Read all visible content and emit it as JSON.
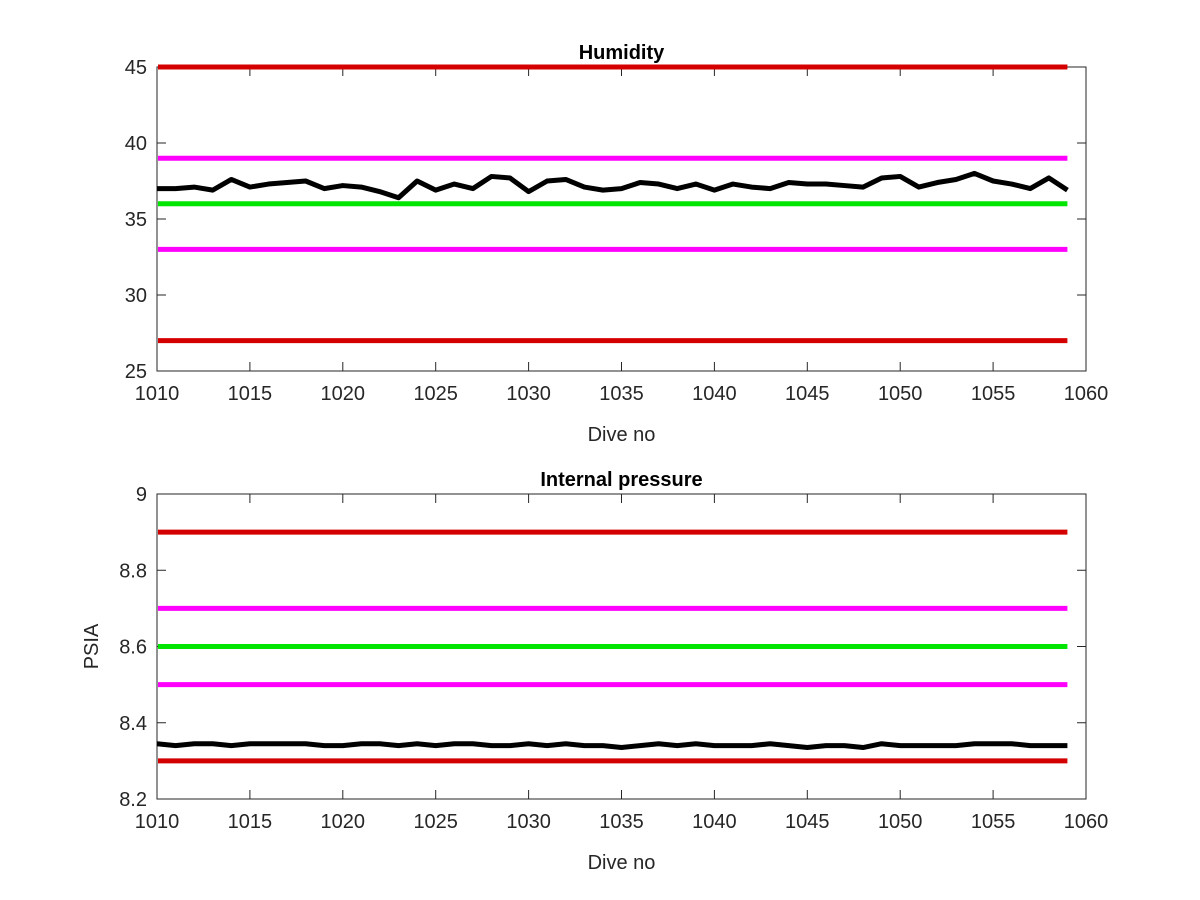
{
  "chart_data": [
    {
      "type": "line",
      "title": "Humidity",
      "xlabel": "Dive no",
      "ylabel": "",
      "xlim": [
        1010,
        1060
      ],
      "ylim": [
        25,
        45
      ],
      "xticks": [
        1010,
        1015,
        1020,
        1025,
        1030,
        1035,
        1040,
        1045,
        1050,
        1055,
        1060
      ],
      "yticks": [
        25,
        30,
        35,
        40,
        45
      ],
      "xtick_labels": [
        "1010",
        "1015",
        "1020",
        "1025",
        "1030",
        "1035",
        "1040",
        "1045",
        "1050",
        "1055",
        "1060"
      ],
      "ytick_labels": [
        "25",
        "30",
        "35",
        "40",
        "45"
      ],
      "grid": false,
      "reference_lines": [
        {
          "y": 45,
          "color": "#d40000"
        },
        {
          "y": 39,
          "color": "#ff00ff"
        },
        {
          "y": 36,
          "color": "#00e600"
        },
        {
          "y": 33,
          "color": "#ff00ff"
        },
        {
          "y": 27,
          "color": "#d40000"
        }
      ],
      "series": [
        {
          "color": "#000000",
          "x": [
            1010,
            1011,
            1012,
            1013,
            1014,
            1015,
            1016,
            1017,
            1018,
            1019,
            1020,
            1021,
            1022,
            1023,
            1024,
            1025,
            1026,
            1027,
            1028,
            1029,
            1030,
            1031,
            1032,
            1033,
            1034,
            1035,
            1036,
            1037,
            1038,
            1039,
            1040,
            1041,
            1042,
            1043,
            1044,
            1045,
            1046,
            1047,
            1048,
            1049,
            1050,
            1051,
            1052,
            1053,
            1054,
            1055,
            1056,
            1057,
            1058,
            1059
          ],
          "y": [
            37.0,
            37.0,
            37.1,
            36.9,
            37.6,
            37.1,
            37.3,
            37.4,
            37.5,
            37.0,
            37.2,
            37.1,
            36.8,
            36.4,
            37.5,
            36.9,
            37.3,
            37.0,
            37.8,
            37.7,
            36.8,
            37.5,
            37.6,
            37.1,
            36.9,
            37.0,
            37.4,
            37.3,
            37.0,
            37.3,
            36.9,
            37.3,
            37.1,
            37.0,
            37.4,
            37.3,
            37.3,
            37.2,
            37.1,
            37.7,
            37.8,
            37.1,
            37.4,
            37.6,
            38.0,
            37.5,
            37.3,
            37.0,
            37.7,
            36.9
          ]
        }
      ]
    },
    {
      "type": "line",
      "title": "Internal pressure",
      "xlabel": "Dive no",
      "ylabel": "PSIA",
      "xlim": [
        1010,
        1060
      ],
      "ylim": [
        8.2,
        9
      ],
      "xticks": [
        1010,
        1015,
        1020,
        1025,
        1030,
        1035,
        1040,
        1045,
        1050,
        1055,
        1060
      ],
      "yticks": [
        8.2,
        8.4,
        8.6,
        8.8,
        9
      ],
      "xtick_labels": [
        "1010",
        "1015",
        "1020",
        "1025",
        "1030",
        "1035",
        "1040",
        "1045",
        "1050",
        "1055",
        "1060"
      ],
      "ytick_labels": [
        "8.2",
        "8.4",
        "8.6",
        "8.8",
        "9"
      ],
      "grid": false,
      "reference_lines": [
        {
          "y": 8.9,
          "color": "#d40000"
        },
        {
          "y": 8.7,
          "color": "#ff00ff"
        },
        {
          "y": 8.6,
          "color": "#00e600"
        },
        {
          "y": 8.5,
          "color": "#ff00ff"
        },
        {
          "y": 8.3,
          "color": "#d40000"
        }
      ],
      "series": [
        {
          "color": "#000000",
          "x": [
            1010,
            1011,
            1012,
            1013,
            1014,
            1015,
            1016,
            1017,
            1018,
            1019,
            1020,
            1021,
            1022,
            1023,
            1024,
            1025,
            1026,
            1027,
            1028,
            1029,
            1030,
            1031,
            1032,
            1033,
            1034,
            1035,
            1036,
            1037,
            1038,
            1039,
            1040,
            1041,
            1042,
            1043,
            1044,
            1045,
            1046,
            1047,
            1048,
            1049,
            1050,
            1051,
            1052,
            1053,
            1054,
            1055,
            1056,
            1057,
            1058,
            1059
          ],
          "y": [
            8.345,
            8.34,
            8.345,
            8.345,
            8.34,
            8.345,
            8.345,
            8.345,
            8.345,
            8.34,
            8.34,
            8.345,
            8.345,
            8.34,
            8.345,
            8.34,
            8.345,
            8.345,
            8.34,
            8.34,
            8.345,
            8.34,
            8.345,
            8.34,
            8.34,
            8.335,
            8.34,
            8.345,
            8.34,
            8.345,
            8.34,
            8.34,
            8.34,
            8.345,
            8.34,
            8.335,
            8.34,
            8.34,
            8.335,
            8.345,
            8.34,
            8.34,
            8.34,
            8.34,
            8.345,
            8.345,
            8.345,
            8.34,
            8.34,
            8.34
          ]
        }
      ]
    }
  ]
}
